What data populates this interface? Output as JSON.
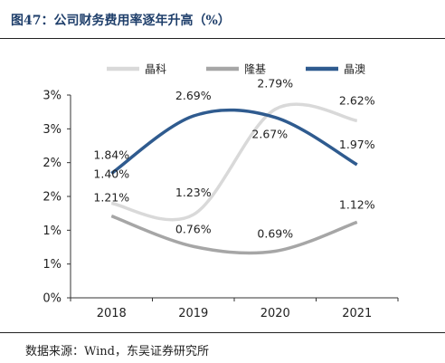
{
  "header": {
    "title": "图47：公司财务费用率逐年升高（%）"
  },
  "footer": {
    "source": "数据来源：Wind，东吴证券研究所"
  },
  "chart_data": {
    "type": "line",
    "smooth": true,
    "title": "",
    "xlabel": "",
    "ylabel": "",
    "categories": [
      "2018",
      "2019",
      "2020",
      "2021"
    ],
    "ylim": [
      0,
      3
    ],
    "y_ticks": [
      "0%",
      "1%",
      "1%",
      "2%",
      "2%",
      "3%",
      "3%"
    ],
    "grid": false,
    "legend": "top",
    "series": [
      {
        "name": "晶科",
        "values": [
          1.4,
          1.23,
          2.79,
          2.62
        ],
        "labels": [
          "1.40%",
          "1.23%",
          "2.79%",
          "2.62%"
        ],
        "color": "#d9d9d9"
      },
      {
        "name": "隆基",
        "values": [
          1.21,
          0.76,
          0.69,
          1.12
        ],
        "labels": [
          "1.21%",
          "0.76%",
          "0.69%",
          "1.12%"
        ],
        "color": "#a6a6a6"
      },
      {
        "name": "晶澳",
        "values": [
          1.84,
          2.69,
          2.67,
          1.97
        ],
        "labels": [
          "1.84%",
          "2.69%",
          "2.67%",
          "1.97%"
        ],
        "color": "#2f5b8f"
      }
    ]
  }
}
